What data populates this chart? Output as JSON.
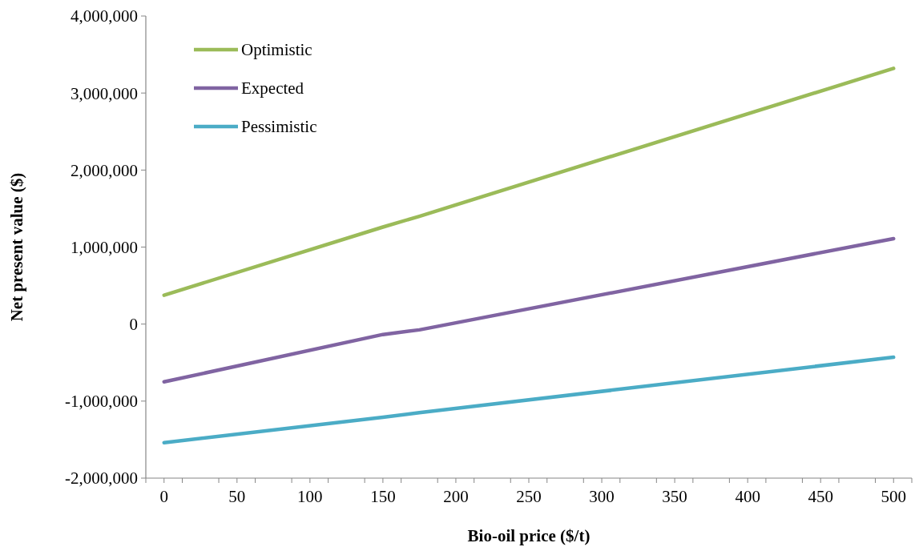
{
  "chart_data": {
    "type": "line",
    "xlabel": "Bio-oil price ($/t)",
    "ylabel": "Net present value ($)",
    "x": [
      0,
      150,
      175,
      500
    ],
    "series": [
      {
        "name": "Optimistic",
        "color": "#9bbb59",
        "values": [
          375000,
          1260000,
          1400000,
          3320000
        ]
      },
      {
        "name": "Expected",
        "color": "#8064a2",
        "values": [
          -750000,
          -135000,
          -75000,
          1110000
        ]
      },
      {
        "name": "Pessimistic",
        "color": "#4bacc6",
        "values": [
          -1540000,
          -1210000,
          -1150000,
          -430000
        ]
      }
    ],
    "xlim": [
      -12.5,
      512.5
    ],
    "xticks": [
      {
        "value": -12.5,
        "label": null
      },
      0,
      {
        "value": 12.5,
        "label": null
      },
      {
        "value": 37.5,
        "label": null
      },
      50,
      {
        "value": 62.5,
        "label": null
      },
      {
        "value": 87.5,
        "label": null
      },
      100,
      {
        "value": 112.5,
        "label": null
      },
      {
        "value": 137.5,
        "label": null
      },
      150,
      {
        "value": 162.5,
        "label": null
      },
      {
        "value": 187.5,
        "label": null
      },
      200,
      {
        "value": 212.5,
        "label": null
      },
      {
        "value": 237.5,
        "label": null
      },
      250,
      {
        "value": 262.5,
        "label": null
      },
      {
        "value": 287.5,
        "label": null
      },
      300,
      {
        "value": 312.5,
        "label": null
      },
      {
        "value": 337.5,
        "label": null
      },
      350,
      {
        "value": 362.5,
        "label": null
      },
      {
        "value": 387.5,
        "label": null
      },
      400,
      {
        "value": 412.5,
        "label": null
      },
      {
        "value": 437.5,
        "label": null
      },
      450,
      {
        "value": 462.5,
        "label": null
      },
      {
        "value": 487.5,
        "label": null
      },
      500,
      {
        "value": 512.5,
        "label": null
      }
    ],
    "ylim": [
      -2000000,
      4000000
    ],
    "yticks": [
      {
        "value": -2000000,
        "label": "-2,000,000"
      },
      {
        "value": -1000000,
        "label": "-1,000,000"
      },
      0,
      {
        "value": 1000000,
        "label": "1,000,000"
      },
      {
        "value": 2000000,
        "label": "2,000,000"
      },
      {
        "value": 3000000,
        "label": "3,000,000"
      },
      {
        "value": 4000000,
        "label": "4,000,000"
      }
    ],
    "grid": false,
    "legend": "top left",
    "marker": "none",
    "line_style": "solid"
  }
}
